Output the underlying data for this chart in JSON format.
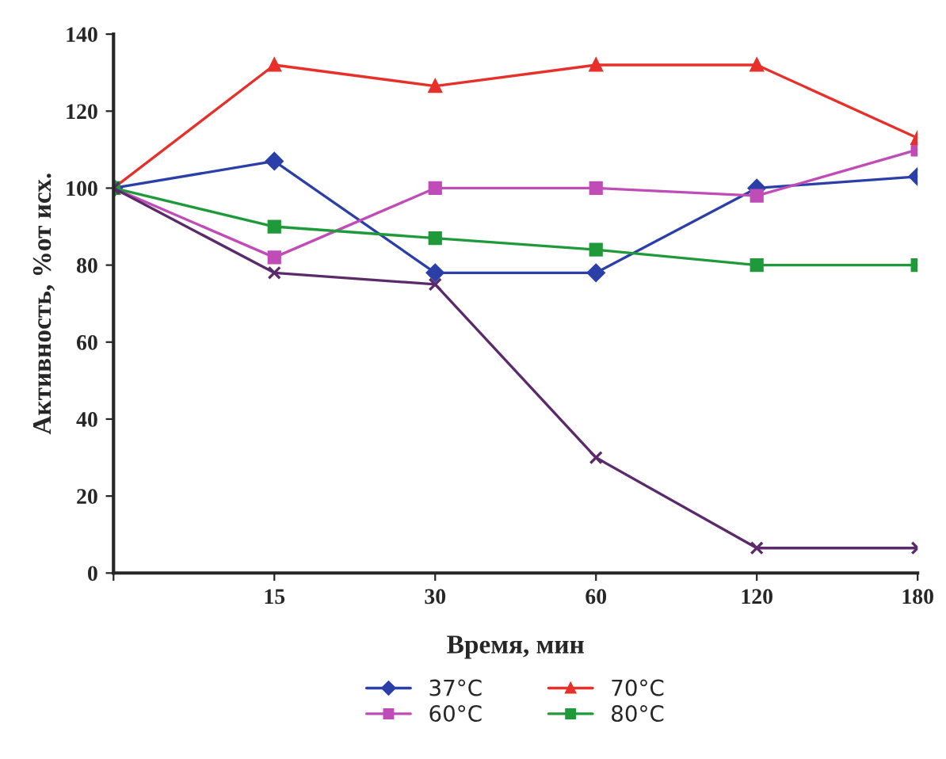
{
  "chart_data": {
    "type": "line",
    "xlabel": "Время, мин",
    "ylabel": "Активность, %от исх.",
    "categories": [
      null,
      "15",
      "30",
      "60",
      "120",
      "180"
    ],
    "ylim": [
      0,
      140
    ],
    "yticks": [
      0,
      20,
      40,
      60,
      80,
      100,
      120,
      140
    ],
    "grid": false,
    "legend": "bottom",
    "line_style": "solid",
    "series": [
      {
        "name": "37°C",
        "color": "#2b3fa8",
        "marker": "diamond",
        "values": [
          100,
          107,
          78,
          78,
          100,
          103
        ]
      },
      {
        "name": "60°C",
        "color": "#c04cb8",
        "marker": "square",
        "values": [
          100,
          82,
          100,
          100,
          98,
          110
        ]
      },
      {
        "name": "70°C",
        "color": "#e8302a",
        "marker": "triangle",
        "values": [
          100,
          132,
          126.5,
          132,
          132,
          113
        ]
      },
      {
        "name": "80°C",
        "color": "#1f9a3a",
        "marker": "square",
        "values": [
          100,
          90,
          87,
          84,
          80,
          80
        ]
      },
      {
        "color": "#5a2a6a",
        "marker": "cross",
        "values": [
          100,
          78,
          75,
          30,
          6.5,
          6.5
        ]
      }
    ]
  }
}
